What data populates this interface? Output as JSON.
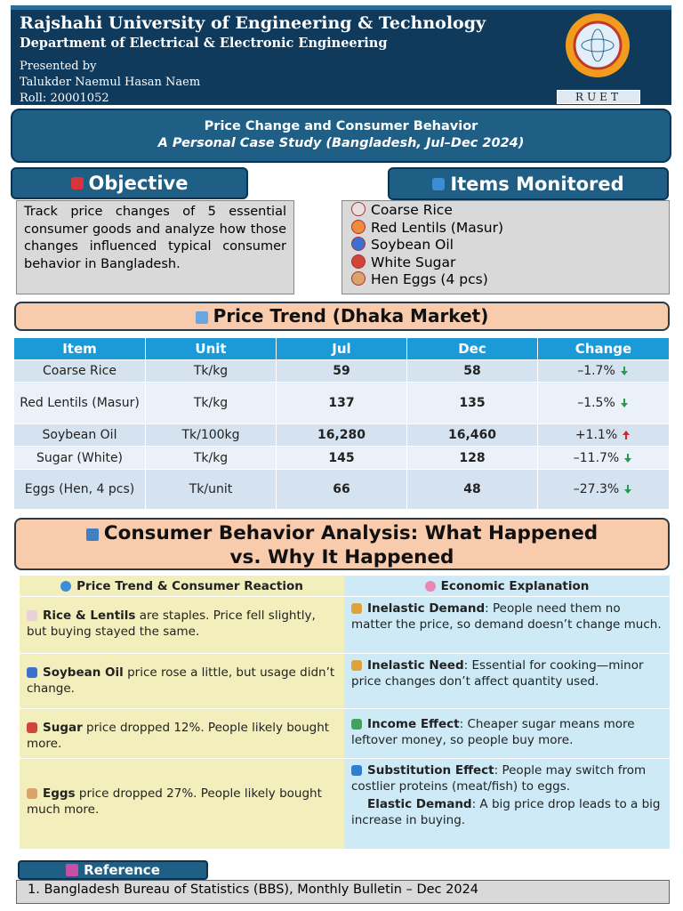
{
  "header": {
    "university": "Rajshahi University of Engineering & Technology",
    "department": "Department of Electrical & Electronic Engineering",
    "presented_by": "Presented by",
    "presenter": "Talukder Naemul Hasan Naem",
    "roll": "Roll: 20001052",
    "logo_text": "RUET"
  },
  "banner": {
    "title": "Price Change and Consumer Behavior",
    "subtitle": "A Personal Case Study (Bangladesh, Jul–Dec 2024)"
  },
  "objective": {
    "heading": "Objective",
    "text": "Track price changes of 5 essential consumer goods and analyze how those changes influenced typical consumer behavior in Bangladesh."
  },
  "items": {
    "heading": "Items Monitored",
    "list": [
      "Coarse Rice",
      "Red Lentils (Masur)",
      "Soybean Oil",
      "White Sugar",
      "Hen Eggs (4 pcs)"
    ]
  },
  "price_trend": {
    "heading": "Price Trend (Dhaka Market)",
    "columns": [
      "Item",
      "Unit",
      "Jul",
      "Dec",
      "Change"
    ],
    "rows": [
      [
        "Coarse Rice",
        "Tk/kg",
        "59",
        "58",
        "–1.7%"
      ],
      [
        "Red Lentils (Masur)",
        "Tk/kg",
        "137",
        "135",
        "–1.5%"
      ],
      [
        "Soybean Oil",
        "Tk/100kg",
        "16,280",
        "16,460",
        "+1.1%"
      ],
      [
        "Sugar (White)",
        "Tk/kg",
        "145",
        "128",
        "–11.7%"
      ],
      [
        "Eggs (Hen, 4 pcs)",
        "Tk/unit",
        "66",
        "48",
        "–27.3%"
      ]
    ],
    "directions": [
      "down",
      "down",
      "up",
      "down",
      "down"
    ]
  },
  "analysis": {
    "heading": "Consumer Behavior Analysis: What Happened vs. Why It Happened",
    "columns": [
      "Price Trend & Consumer Reaction",
      "Economic Explanation"
    ],
    "rows": [
      {
        "reaction": {
          "bold": "Rice & Lentils",
          "text": " are staples. Price fell slightly, but buying stayed the same."
        },
        "explanation": [
          {
            "bold": "Inelastic Demand",
            "text": ": People need them no matter the price, so demand doesn’t change much."
          }
        ]
      },
      {
        "reaction": {
          "bold": "Soybean Oil",
          "text": " price rose a little, but usage didn’t change."
        },
        "explanation": [
          {
            "bold": "Inelastic Need",
            "text": ": Essential for cooking—minor price changes don’t affect quantity used."
          }
        ]
      },
      {
        "reaction": {
          "bold": "Sugar",
          "text": " price dropped 12%. People likely bought more."
        },
        "explanation": [
          {
            "bold": "Income Effect",
            "text": ": Cheaper sugar means more leftover money, so people buy more."
          }
        ]
      },
      {
        "reaction": {
          "bold": "Eggs",
          "text": " price dropped 27%. People likely bought much more."
        },
        "explanation": [
          {
            "bold": "Substitution Effect",
            "text": ": People may switch from costlier proteins (meat/fish) to eggs."
          },
          {
            "bold": "Elastic Demand",
            "text": ": A big price drop leads to a big increase in buying."
          }
        ]
      }
    ]
  },
  "reference": {
    "heading": "Reference",
    "items": [
      "1. Bangladesh Bureau of Statistics (BBS), Monthly Bulletin – Dec 2024"
    ]
  }
}
